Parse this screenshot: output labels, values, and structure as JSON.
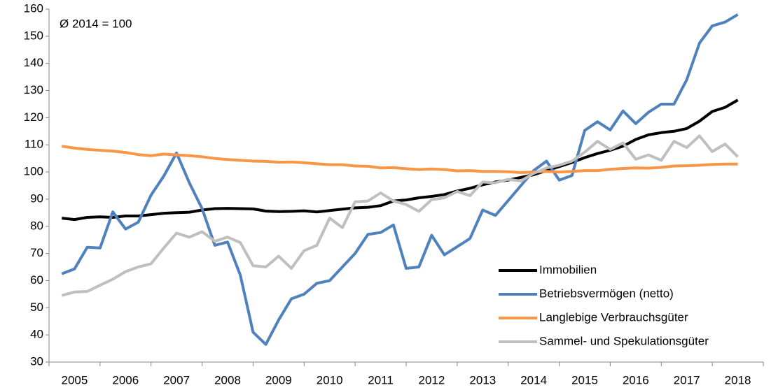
{
  "chart_data": {
    "type": "line",
    "annotation": "Ø 2014 = 100",
    "x": [
      2005.25,
      2005.5,
      2005.75,
      2006,
      2006.25,
      2006.5,
      2006.75,
      2007,
      2007.25,
      2007.5,
      2007.75,
      2008,
      2008.25,
      2008.5,
      2008.75,
      2009,
      2009.25,
      2009.5,
      2009.75,
      2010,
      2010.25,
      2010.5,
      2010.75,
      2011,
      2011.25,
      2011.5,
      2011.75,
      2012,
      2012.25,
      2012.5,
      2012.75,
      2013,
      2013.25,
      2013.5,
      2013.75,
      2014,
      2014.25,
      2014.5,
      2014.75,
      2015,
      2015.25,
      2015.5,
      2015.75,
      2016,
      2016.25,
      2016.5,
      2016.75,
      2017,
      2017.25,
      2017.5,
      2017.75,
      2018,
      2018.25,
      2018.5
    ],
    "xlim": [
      2005,
      2019
    ],
    "xticks": [
      {
        "value": 2005.5,
        "label": "2005"
      },
      {
        "value": 2006.5,
        "label": "2006"
      },
      {
        "value": 2007.5,
        "label": "2007"
      },
      {
        "value": 2008.5,
        "label": "2008"
      },
      {
        "value": 2009.5,
        "label": "2009"
      },
      {
        "value": 2010.5,
        "label": "2010"
      },
      {
        "value": 2011.5,
        "label": "2011"
      },
      {
        "value": 2012.5,
        "label": "2012"
      },
      {
        "value": 2013.5,
        "label": "2013"
      },
      {
        "value": 2014.5,
        "label": "2014"
      },
      {
        "value": 2015.5,
        "label": "2015"
      },
      {
        "value": 2016.5,
        "label": "2016"
      },
      {
        "value": 2017.5,
        "label": "2017"
      },
      {
        "value": 2018.5,
        "label": "2018"
      }
    ],
    "ylim": [
      30,
      160
    ],
    "yticks": [
      30,
      40,
      50,
      60,
      70,
      80,
      90,
      100,
      110,
      120,
      130,
      140,
      150,
      160
    ],
    "grid": false,
    "legend": "lower right",
    "series": [
      {
        "name": "Immobilien",
        "color": "#000000",
        "values": [
          83,
          82.5,
          83.3,
          83.5,
          83.3,
          83.8,
          83.8,
          84.3,
          84.8,
          85,
          85.2,
          86,
          86.5,
          86.6,
          86.5,
          86.4,
          85.6,
          85.4,
          85.5,
          85.7,
          85.3,
          85.8,
          86.3,
          86.8,
          87,
          87.6,
          89.3,
          89.7,
          90.5,
          91,
          91.7,
          93,
          94,
          95.3,
          96.3,
          97,
          98,
          99,
          100.5,
          102,
          103.5,
          105.3,
          106.8,
          108,
          109.5,
          112,
          113.7,
          114.5,
          115,
          116,
          118.7,
          122.3,
          123.8,
          126.5
        ]
      },
      {
        "name": "Betriebsvermögen (netto)",
        "color": "#4f81bd",
        "values": [
          62.5,
          64.3,
          72.3,
          72,
          85.3,
          79,
          81.5,
          91.5,
          98.5,
          107,
          96,
          86.5,
          73,
          74.2,
          62,
          41,
          36.5,
          45.5,
          53.3,
          55,
          59,
          60,
          65,
          70,
          77,
          77.7,
          80.5,
          64.5,
          65,
          76.7,
          69.5,
          72.5,
          75.5,
          86,
          84,
          89.5,
          95,
          100.5,
          104,
          97,
          98.7,
          115.3,
          118.5,
          115.5,
          122.5,
          117.8,
          122,
          125,
          125,
          134,
          147.5,
          153.8,
          155.2,
          158
        ]
      },
      {
        "name": "Langlebige Verbrauchsgüter",
        "color": "#f79646",
        "values": [
          109.5,
          108.8,
          108.3,
          108,
          107.7,
          107.2,
          106.4,
          106,
          106.6,
          106.3,
          106,
          105.6,
          105,
          104.6,
          104.3,
          104,
          103.9,
          103.6,
          103.7,
          103.4,
          103,
          102.7,
          102.7,
          102.2,
          102.1,
          101.5,
          101.6,
          101.2,
          100.9,
          101.1,
          100.9,
          100.4,
          100.5,
          100.2,
          100.2,
          100.1,
          99.8,
          100,
          100.2,
          100,
          100.2,
          100.5,
          100.5,
          101,
          101.3,
          101.5,
          101.4,
          101.7,
          102.2,
          102.3,
          102.5,
          102.8,
          102.9,
          102.9
        ]
      },
      {
        "name": "Sammel- und Spekulationsgüter",
        "color": "#bfbfbf",
        "values": [
          54.5,
          55.8,
          56,
          58.3,
          60.5,
          63.3,
          65,
          66.2,
          72,
          77.5,
          76,
          78,
          74.5,
          76,
          74,
          65.5,
          65,
          69,
          64.5,
          71,
          73,
          83,
          79.5,
          89,
          89.3,
          92.3,
          89.3,
          88,
          85.5,
          89.8,
          90.5,
          92.8,
          91.3,
          96.3,
          96,
          97.3,
          96.7,
          99.5,
          101.5,
          102.5,
          104,
          107.3,
          111.3,
          108.3,
          110.7,
          104.7,
          106.3,
          104.3,
          111.3,
          109,
          113.3,
          107.5,
          110.3,
          105.6
        ]
      }
    ]
  }
}
